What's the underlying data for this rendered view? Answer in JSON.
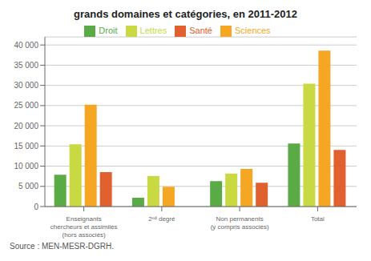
{
  "chart_data": {
    "type": "bar",
    "title": "grands domaines et catégories, en 2011-2012",
    "categories": [
      "Enseignants\nchercheurs et assimilés\n(hors associés)",
      "2ⁿᵈ degré",
      "Non permanents\n(y compris associés)",
      "Total"
    ],
    "series": [
      {
        "name": "Droit",
        "color": "#5aaa46",
        "values": [
          7900,
          2200,
          6300,
          15600
        ]
      },
      {
        "name": "Lettres",
        "color": "#c8d942",
        "values": [
          15400,
          7600,
          8200,
          30400
        ]
      },
      {
        "name": "Sciences",
        "color": "#f5a623",
        "values": [
          25200,
          4900,
          9300,
          38600
        ]
      },
      {
        "name": "Santé",
        "color": "#e06030",
        "values": [
          8500,
          0,
          5900,
          14000
        ]
      }
    ],
    "ylim": [
      0,
      42000
    ],
    "yticks": [
      0,
      {
        "value": 5000,
        "label": "5 000"
      },
      {
        "value": 10000,
        "label": "10 000"
      },
      {
        "value": 15000,
        "label": "15 000"
      },
      {
        "value": 20000,
        "label": "20 000"
      },
      {
        "value": 25000,
        "label": "25 000"
      },
      {
        "value": 30000,
        "label": "30 000"
      },
      {
        "value": 35000,
        "label": "35 000"
      },
      {
        "value": 40000,
        "label": "40 000"
      }
    ],
    "grid": true,
    "legend": "top",
    "annotations": [
      "Source : MEN-MESR-DGRH."
    ]
  }
}
